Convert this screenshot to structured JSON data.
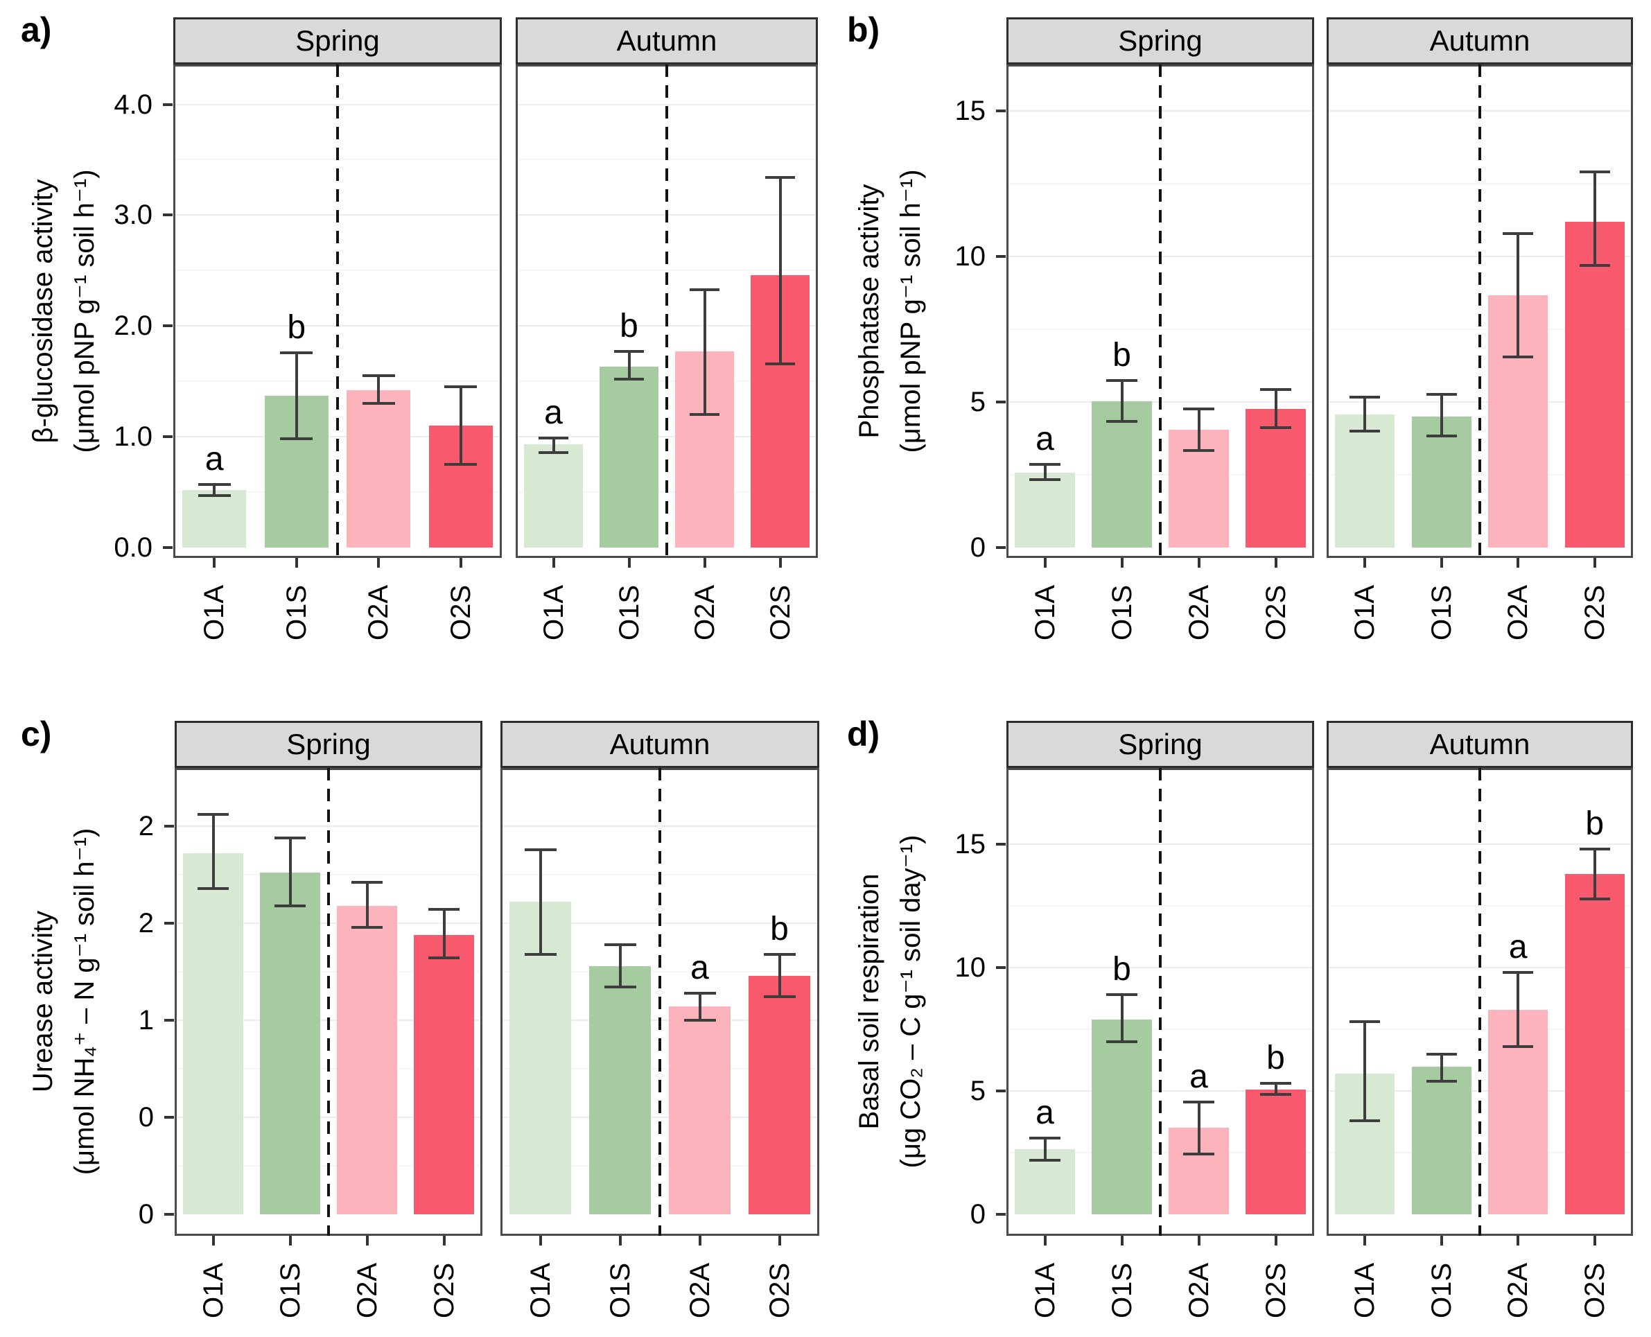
{
  "chart_data": {
    "type": "bar",
    "description_visible_text_only": "Four faceted bar charts of soil enzyme activities and respiration by season",
    "categories": [
      "O1A",
      "O1S",
      "O2A",
      "O2S"
    ],
    "season_labels": [
      "Spring",
      "Autumn"
    ],
    "colors": {
      "O1A": "#d8e9d3",
      "O1S": "#a6cba1",
      "O2A": "#fdb3bb",
      "O2S": "#f8596c",
      "strip_bg": "#d9d9d9",
      "panel_border": "#4b4b4b",
      "error_bar": "#3d3d3d",
      "dashed_divider": "#141414"
    },
    "legend": "none",
    "grid": "faint major horizontal gridlines",
    "panels": [
      {
        "id": "a",
        "tag": "a)",
        "ylabel": "β-glucosidase activity",
        "yunits": "(μmol pNP g⁻¹ soil h⁻¹)",
        "ylim": [
          0,
          4.36
        ],
        "yticks": [
          {
            "v": 0.0,
            "t": "0.0"
          },
          {
            "v": 1.0,
            "t": "1.0"
          },
          {
            "v": 2.0,
            "t": "2.0"
          },
          {
            "v": 3.0,
            "t": "3.0"
          },
          {
            "v": 4.0,
            "t": "4.0"
          }
        ],
        "facets": [
          {
            "name": "Spring",
            "bars": [
              {
                "cat": "O1A",
                "value": 0.52,
                "lo": 0.47,
                "hi": 0.57,
                "letter": "a"
              },
              {
                "cat": "O1S",
                "value": 1.37,
                "lo": 0.98,
                "hi": 1.76,
                "letter": "b"
              },
              {
                "cat": "O2A",
                "value": 1.42,
                "lo": 1.3,
                "hi": 1.55,
                "letter": ""
              },
              {
                "cat": "O2S",
                "value": 1.1,
                "lo": 0.75,
                "hi": 1.45,
                "letter": ""
              }
            ]
          },
          {
            "name": "Autumn",
            "bars": [
              {
                "cat": "O1A",
                "value": 0.93,
                "lo": 0.86,
                "hi": 0.99,
                "letter": "a"
              },
              {
                "cat": "O1S",
                "value": 1.63,
                "lo": 1.52,
                "hi": 1.77,
                "letter": "b"
              },
              {
                "cat": "O2A",
                "value": 1.77,
                "lo": 1.2,
                "hi": 2.33,
                "letter": ""
              },
              {
                "cat": "O2S",
                "value": 2.46,
                "lo": 1.66,
                "hi": 3.34,
                "letter": ""
              }
            ]
          }
        ]
      },
      {
        "id": "b",
        "tag": "b)",
        "ylabel": "Phosphatase activity",
        "yunits": "(μmol pNP g⁻¹ soil h⁻¹)",
        "ylim": [
          0,
          16.6
        ],
        "yticks": [
          {
            "v": 0,
            "t": "0"
          },
          {
            "v": 5,
            "t": "5"
          },
          {
            "v": 10,
            "t": "10"
          },
          {
            "v": 15,
            "t": "15"
          }
        ],
        "facets": [
          {
            "name": "Spring",
            "bars": [
              {
                "cat": "O1A",
                "value": 2.57,
                "lo": 2.33,
                "hi": 2.86,
                "letter": "a"
              },
              {
                "cat": "O1S",
                "value": 5.03,
                "lo": 4.33,
                "hi": 5.75,
                "letter": "b"
              },
              {
                "cat": "O2A",
                "value": 4.05,
                "lo": 3.33,
                "hi": 4.76,
                "letter": ""
              },
              {
                "cat": "O2S",
                "value": 4.76,
                "lo": 4.12,
                "hi": 5.43,
                "letter": ""
              }
            ]
          },
          {
            "name": "Autumn",
            "bars": [
              {
                "cat": "O1A",
                "value": 4.57,
                "lo": 4.0,
                "hi": 5.17,
                "letter": ""
              },
              {
                "cat": "O1S",
                "value": 4.5,
                "lo": 3.83,
                "hi": 5.26,
                "letter": ""
              },
              {
                "cat": "O2A",
                "value": 8.68,
                "lo": 6.55,
                "hi": 10.8,
                "letter": ""
              },
              {
                "cat": "O2S",
                "value": 11.19,
                "lo": 9.69,
                "hi": 12.9,
                "letter": ""
              }
            ]
          }
        ]
      },
      {
        "id": "c",
        "tag": "c)",
        "ylabel": "Urease activity",
        "yunits": "(μmol NH₄⁺ – N g⁻¹ soil h⁻¹)",
        "ylim": [
          0,
          2.3
        ],
        "yticks": [
          {
            "v": 0.0,
            "t": "0"
          },
          {
            "v": 0.5,
            "t": "0"
          },
          {
            "v": 1.0,
            "t": "1"
          },
          {
            "v": 1.5,
            "t": "2"
          },
          {
            "v": 2.0,
            "t": "2"
          }
        ],
        "facets": [
          {
            "name": "Spring",
            "bars": [
              {
                "cat": "O1A",
                "value": 1.86,
                "lo": 1.68,
                "hi": 2.06,
                "letter": ""
              },
              {
                "cat": "O1S",
                "value": 1.76,
                "lo": 1.59,
                "hi": 1.94,
                "letter": ""
              },
              {
                "cat": "O2A",
                "value": 1.59,
                "lo": 1.48,
                "hi": 1.71,
                "letter": ""
              },
              {
                "cat": "O2S",
                "value": 1.44,
                "lo": 1.32,
                "hi": 1.57,
                "letter": ""
              }
            ]
          },
          {
            "name": "Autumn",
            "bars": [
              {
                "cat": "O1A",
                "value": 1.61,
                "lo": 1.34,
                "hi": 1.88,
                "letter": ""
              },
              {
                "cat": "O1S",
                "value": 1.28,
                "lo": 1.17,
                "hi": 1.39,
                "letter": ""
              },
              {
                "cat": "O2A",
                "value": 1.07,
                "lo": 1.0,
                "hi": 1.14,
                "letter": "a"
              },
              {
                "cat": "O2S",
                "value": 1.23,
                "lo": 1.12,
                "hi": 1.34,
                "letter": "b"
              }
            ]
          }
        ]
      },
      {
        "id": "d",
        "tag": "d)",
        "ylabel": "Basal soil respiration",
        "yunits": "(μg CO₂ – C g⁻¹ soil day⁻¹)",
        "ylim": [
          0,
          18.1
        ],
        "yticks": [
          {
            "v": 0,
            "t": "0"
          },
          {
            "v": 5,
            "t": "5"
          },
          {
            "v": 10,
            "t": "10"
          },
          {
            "v": 15,
            "t": "15"
          }
        ],
        "facets": [
          {
            "name": "Spring",
            "bars": [
              {
                "cat": "O1A",
                "value": 2.65,
                "lo": 2.2,
                "hi": 3.1,
                "letter": "a"
              },
              {
                "cat": "O1S",
                "value": 7.9,
                "lo": 7.0,
                "hi": 8.9,
                "letter": "b"
              },
              {
                "cat": "O2A",
                "value": 3.5,
                "lo": 2.45,
                "hi": 4.55,
                "letter": "a"
              },
              {
                "cat": "O2S",
                "value": 5.05,
                "lo": 4.85,
                "hi": 5.3,
                "letter": "b"
              }
            ]
          },
          {
            "name": "Autumn",
            "bars": [
              {
                "cat": "O1A",
                "value": 5.7,
                "lo": 3.8,
                "hi": 7.8,
                "letter": ""
              },
              {
                "cat": "O1S",
                "value": 6.0,
                "lo": 5.4,
                "hi": 6.5,
                "letter": ""
              },
              {
                "cat": "O2A",
                "value": 8.3,
                "lo": 6.8,
                "hi": 9.8,
                "letter": "a"
              },
              {
                "cat": "O2S",
                "value": 13.8,
                "lo": 12.8,
                "hi": 14.8,
                "letter": "b"
              }
            ]
          }
        ]
      }
    ]
  }
}
